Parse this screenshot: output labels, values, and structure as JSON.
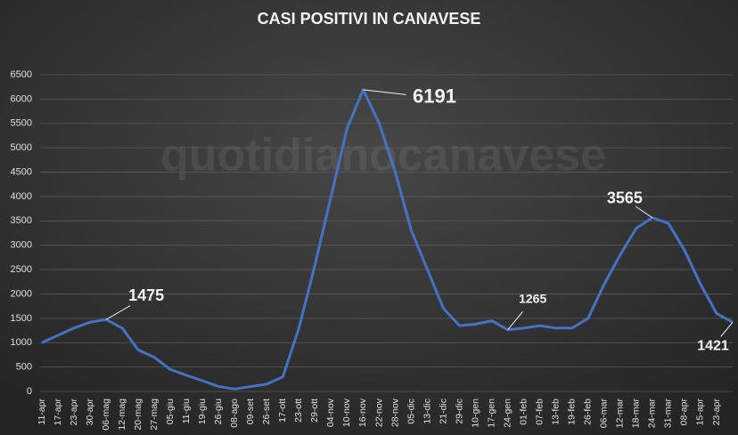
{
  "chart_data": {
    "type": "line",
    "title": "CASI POSITIVI IN CANAVESE",
    "watermark": "quotidianocanavese",
    "categories": [
      "11-apr",
      "17-apr",
      "23-apr",
      "30-apr",
      "06-mag",
      "12-mag",
      "20-mag",
      "27-mag",
      "05-giu",
      "11-giu",
      "19-giu",
      "26-giu",
      "08-ago",
      "09-set",
      "26-set",
      "17-ott",
      "23-ott",
      "29-ott",
      "04-nov",
      "10-nov",
      "16-nov",
      "22-nov",
      "28-nov",
      "05-dic",
      "13-dic",
      "21-dic",
      "29-dic",
      "10-gen",
      "17-gen",
      "24-gen",
      "01-feb",
      "07-feb",
      "13-feb",
      "19-feb",
      "26-feb",
      "06-mar",
      "12-mar",
      "18-mar",
      "24-mar",
      "31-mar",
      "08-apr",
      "15-apr",
      "23-apr",
      null
    ],
    "series": [
      {
        "name": "Casi positivi",
        "color": "#4472c4",
        "values": [
          1000,
          1150,
          1300,
          1420,
          1475,
          1300,
          850,
          700,
          450,
          330,
          220,
          100,
          50,
          100,
          150,
          300,
          1300,
          2600,
          4000,
          5400,
          6191,
          5500,
          4500,
          3300,
          2500,
          1700,
          1350,
          1380,
          1450,
          1265,
          1300,
          1350,
          1300,
          1300,
          1500,
          2200,
          2800,
          3350,
          3565,
          3450,
          2900,
          2200,
          1600,
          1421
        ],
        "value_labels": [
          null,
          null,
          null,
          null,
          "1475",
          null,
          null,
          null,
          null,
          null,
          null,
          null,
          null,
          null,
          null,
          null,
          null,
          null,
          null,
          null,
          "6191",
          null,
          null,
          null,
          null,
          null,
          null,
          null,
          null,
          "1265",
          null,
          null,
          null,
          null,
          null,
          null,
          null,
          null,
          "3565",
          null,
          null,
          null,
          null,
          "1421"
        ]
      }
    ],
    "ylim": [
      0,
      6500
    ],
    "yticks": [
      0,
      500,
      1000,
      1500,
      2000,
      2500,
      3000,
      3500,
      4000,
      4500,
      5000,
      5500,
      6000,
      6500
    ],
    "grid": true
  }
}
